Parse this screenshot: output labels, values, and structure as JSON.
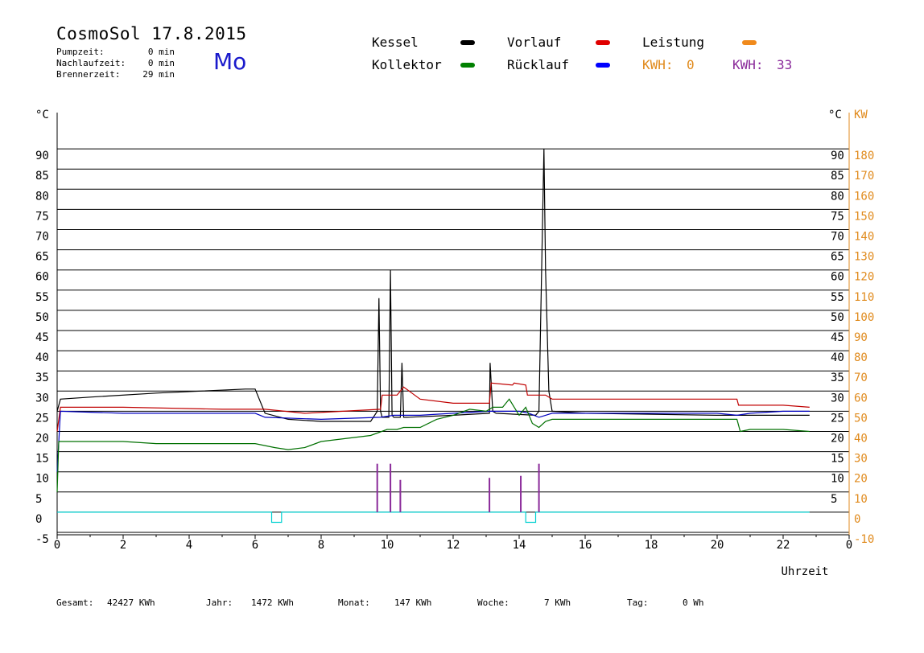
{
  "header": {
    "title": "CosmoSol 17.8.2015",
    "day": "Mo",
    "stats": [
      {
        "label": "Pumpzeit:",
        "value": "0 min"
      },
      {
        "label": "Nachlaufzeit:",
        "value": "0 min"
      },
      {
        "label": "Brennerzeit:",
        "value": "29 min"
      }
    ]
  },
  "legend": {
    "kessel": {
      "label": "Kessel",
      "color": "#000000"
    },
    "kollektor": {
      "label": "Kollektor",
      "color": "#008000"
    },
    "vorlauf": {
      "label": "Vorlauf",
      "color": "#e00000"
    },
    "ruecklauf": {
      "label": "Rücklauf",
      "color": "#0000ff"
    },
    "leistung": {
      "label": "Leistung",
      "color": "#f08a1c"
    },
    "kwh_orange": {
      "label": "KWH:",
      "value": "0",
      "color": "#e08a1c"
    },
    "kwh_purple": {
      "label": "KWH:",
      "value": "33",
      "color": "#8a2a9a"
    }
  },
  "footer": {
    "gesamt_label": "Gesamt:",
    "gesamt_value": "42427 KWh",
    "jahr_label": "Jahr:",
    "jahr_value": "1472 KWh",
    "monat_label": "Monat:",
    "monat_value": "147 KWh",
    "woche_label": "Woche:",
    "woche_value": "7 KWh",
    "tag_label": "Tag:",
    "tag_value": "0 Wh"
  },
  "chart_data": {
    "type": "line",
    "xlabel": "Uhrzeit",
    "ylabel_left": "°C",
    "ylabel_right_1": "°C",
    "ylabel_right_2": "KW",
    "xlim": [
      0,
      24
    ],
    "ylim": [
      -5,
      95
    ],
    "x_ticks": [
      "0",
      "2",
      "4",
      "6",
      "8",
      "10",
      "12",
      "14",
      "16",
      "18",
      "20",
      "22",
      "0"
    ],
    "y_ticks_left": [
      "90",
      "85",
      "80",
      "75",
      "70",
      "65",
      "60",
      "55",
      "50",
      "45",
      "40",
      "35",
      "30",
      "25",
      "20",
      "15",
      "10",
      "5",
      "0",
      "-5"
    ],
    "y_ticks_right_c": [
      "90",
      "85",
      "80",
      "75",
      "70",
      "65",
      "60",
      "55",
      "50",
      "45",
      "40",
      "35",
      "30",
      "25",
      "20",
      "15",
      "10",
      "5"
    ],
    "y_ticks_right_kw": [
      "180",
      "170",
      "160",
      "150",
      "140",
      "130",
      "120",
      "110",
      "100",
      "90",
      "80",
      "70",
      "60",
      "50",
      "40",
      "30",
      "20",
      "10",
      "0",
      "-10"
    ],
    "grid": true,
    "series": [
      {
        "name": "Kessel",
        "color": "#000000",
        "x": [
          0,
          0.1,
          1,
          3,
          5.7,
          6.0,
          6.3,
          7,
          8,
          9.5,
          9.7,
          9.75,
          9.8,
          9.85,
          10.05,
          10.1,
          10.15,
          10.2,
          10.4,
          10.45,
          10.5,
          10.6,
          12,
          13.1,
          13.12,
          13.2,
          13.3,
          14.5,
          14.6,
          14.75,
          14.8,
          14.9,
          15.0,
          16,
          20,
          20.6,
          22,
          22.8
        ],
        "y": [
          25,
          28,
          28.5,
          29.5,
          30.5,
          30.5,
          24.5,
          23,
          22.5,
          22.5,
          25,
          53,
          25,
          23.5,
          23.5,
          60,
          24,
          23.5,
          23.5,
          37,
          23.5,
          23.5,
          24,
          24.5,
          37,
          25,
          24.5,
          24,
          25,
          90,
          60,
          30,
          25,
          24.5,
          24,
          24,
          24,
          24
        ]
      },
      {
        "name": "Vorlauf",
        "color": "#c00000",
        "x": [
          0,
          0.1,
          2,
          5,
          6.0,
          6.3,
          7.5,
          9.8,
          9.85,
          10.3,
          10.5,
          11,
          12,
          13.1,
          13.15,
          13.8,
          13.85,
          14.2,
          14.25,
          14.8,
          15.0,
          20.6,
          20.65,
          22,
          22.8
        ],
        "y": [
          20,
          26,
          26,
          25.5,
          25.5,
          25.5,
          24.5,
          25.5,
          29,
          29,
          31,
          28,
          27,
          27,
          32,
          31.5,
          32,
          31.5,
          29,
          29,
          28,
          28,
          26.5,
          26.5,
          26
        ]
      },
      {
        "name": "Rücklauf",
        "color": "#0000c0",
        "x": [
          0,
          0.1,
          2,
          6.0,
          6.3,
          8,
          9.8,
          10.2,
          11,
          12,
          13.1,
          14,
          14.3,
          14.6,
          14.8,
          15,
          16,
          20,
          20.6,
          21,
          22,
          22.8
        ],
        "y": [
          10,
          25,
          24.5,
          24.5,
          23.5,
          23,
          23.5,
          24,
          24,
          24.5,
          25,
          25,
          24.5,
          23.5,
          24,
          24.5,
          24.5,
          24.5,
          24,
          24.5,
          25,
          25
        ]
      },
      {
        "name": "Kollektor",
        "color": "#007000",
        "x": [
          0,
          0.05,
          1,
          2,
          3,
          4,
          5,
          6.0,
          6.6,
          7,
          7.5,
          8,
          9,
          9.5,
          10,
          10.3,
          10.5,
          11,
          11.5,
          12,
          12.5,
          13,
          13.2,
          13.5,
          13.7,
          14,
          14.2,
          14.4,
          14.6,
          14.8,
          15,
          16,
          18,
          20,
          20.6,
          20.7,
          21,
          22,
          22.8
        ],
        "y": [
          5,
          17.5,
          17.5,
          17.5,
          17,
          17,
          17,
          17,
          16,
          15.5,
          16,
          17.5,
          18.5,
          19,
          20.5,
          20.5,
          21,
          21,
          23,
          24,
          25.5,
          25,
          26,
          26,
          28,
          24,
          26,
          22,
          21,
          22.5,
          23,
          23,
          23,
          23,
          23,
          20,
          20.5,
          20.5,
          20
        ]
      },
      {
        "name": "Leistung",
        "color": "#00d0d0",
        "x": [
          0,
          6.5,
          6.5,
          6.8,
          6.8,
          14.2,
          14.2,
          14.5,
          14.5,
          22.8
        ],
        "y": [
          0,
          0,
          -2.5,
          -2.5,
          0,
          0,
          -2.5,
          -2.5,
          0,
          0
        ]
      }
    ],
    "spikes_purple": [
      {
        "x": 9.7,
        "y": 12
      },
      {
        "x": 10.1,
        "y": 12
      },
      {
        "x": 10.4,
        "y": 8
      },
      {
        "x": 13.1,
        "y": 8.5
      },
      {
        "x": 14.05,
        "y": 9
      },
      {
        "x": 14.6,
        "y": 12
      }
    ]
  }
}
